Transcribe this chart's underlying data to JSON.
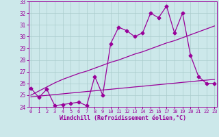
{
  "xlabel": "Windchill (Refroidissement éolien,°C)",
  "x": [
    0,
    1,
    2,
    3,
    4,
    5,
    6,
    7,
    8,
    9,
    10,
    11,
    12,
    13,
    14,
    15,
    16,
    17,
    18,
    19,
    20,
    21,
    22,
    23
  ],
  "y_data": [
    25.6,
    24.8,
    25.5,
    24.1,
    24.2,
    24.3,
    24.4,
    24.1,
    26.6,
    25.0,
    29.4,
    30.8,
    30.5,
    30.0,
    30.3,
    32.0,
    31.6,
    32.6,
    30.3,
    32.0,
    28.4,
    26.6,
    26.0,
    26.0
  ],
  "y_trend_low": [
    24.85,
    24.92,
    24.98,
    25.05,
    25.11,
    25.18,
    25.24,
    25.31,
    25.37,
    25.44,
    25.5,
    25.57,
    25.63,
    25.7,
    25.76,
    25.83,
    25.89,
    25.96,
    26.02,
    26.09,
    26.15,
    26.22,
    26.28,
    26.35
  ],
  "y_trend_high": [
    25.0,
    25.35,
    25.7,
    26.05,
    26.35,
    26.6,
    26.85,
    27.05,
    27.3,
    27.55,
    27.8,
    28.0,
    28.25,
    28.5,
    28.7,
    28.95,
    29.2,
    29.45,
    29.65,
    29.9,
    30.15,
    30.4,
    30.65,
    30.9
  ],
  "ylim": [
    24,
    33
  ],
  "xlim_left": -0.3,
  "xlim_right": 23.3,
  "yticks": [
    24,
    25,
    26,
    27,
    28,
    29,
    30,
    31,
    32,
    33
  ],
  "xticks": [
    0,
    1,
    2,
    3,
    4,
    5,
    6,
    7,
    8,
    9,
    10,
    11,
    12,
    13,
    14,
    15,
    16,
    17,
    18,
    19,
    20,
    21,
    22,
    23
  ],
  "line_color": "#990099",
  "bg_color": "#cce8ea",
  "grid_color": "#aacccc",
  "marker": "D",
  "marker_size": 2.5,
  "line_width": 0.9
}
